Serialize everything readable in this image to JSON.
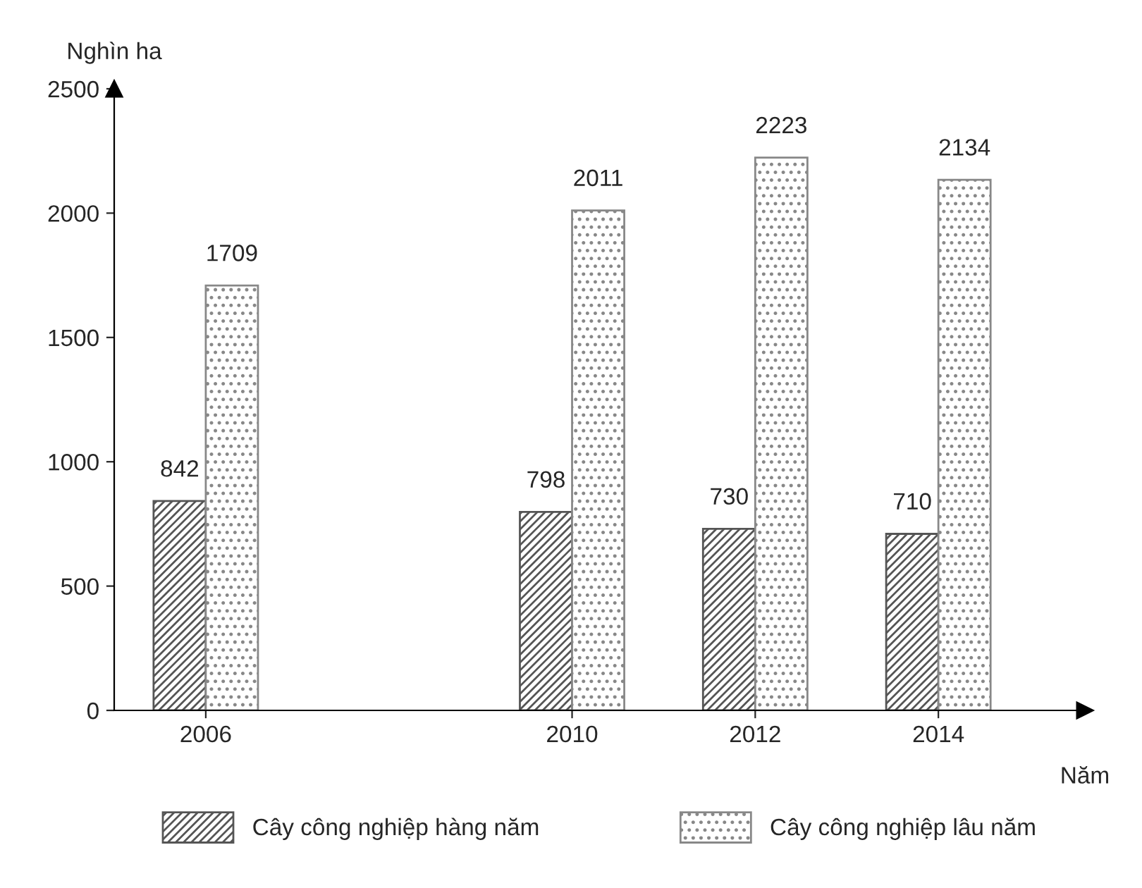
{
  "chart_data": {
    "type": "bar",
    "xlabel": "Năm",
    "ylabel": "Nghìn ha",
    "x": [
      2006,
      2010,
      2012,
      2014
    ],
    "series": [
      {
        "name": "Cây công nghiệp hàng năm",
        "color": "#555555",
        "values": [
          842,
          798,
          730,
          710
        ]
      },
      {
        "name": "Cây công nghiệp lâu năm",
        "color": "#888888",
        "values": [
          1709,
          2011,
          2223,
          2134
        ]
      }
    ],
    "xlim": [
      2005,
      2015.6
    ],
    "xticks": [
      2006,
      2010,
      2012,
      2014
    ],
    "ylim": [
      0,
      2500
    ],
    "yticks": [
      0,
      500,
      1000,
      1500,
      2000,
      2500
    ],
    "data_labels": true,
    "grid": false,
    "legend": "bottom"
  }
}
